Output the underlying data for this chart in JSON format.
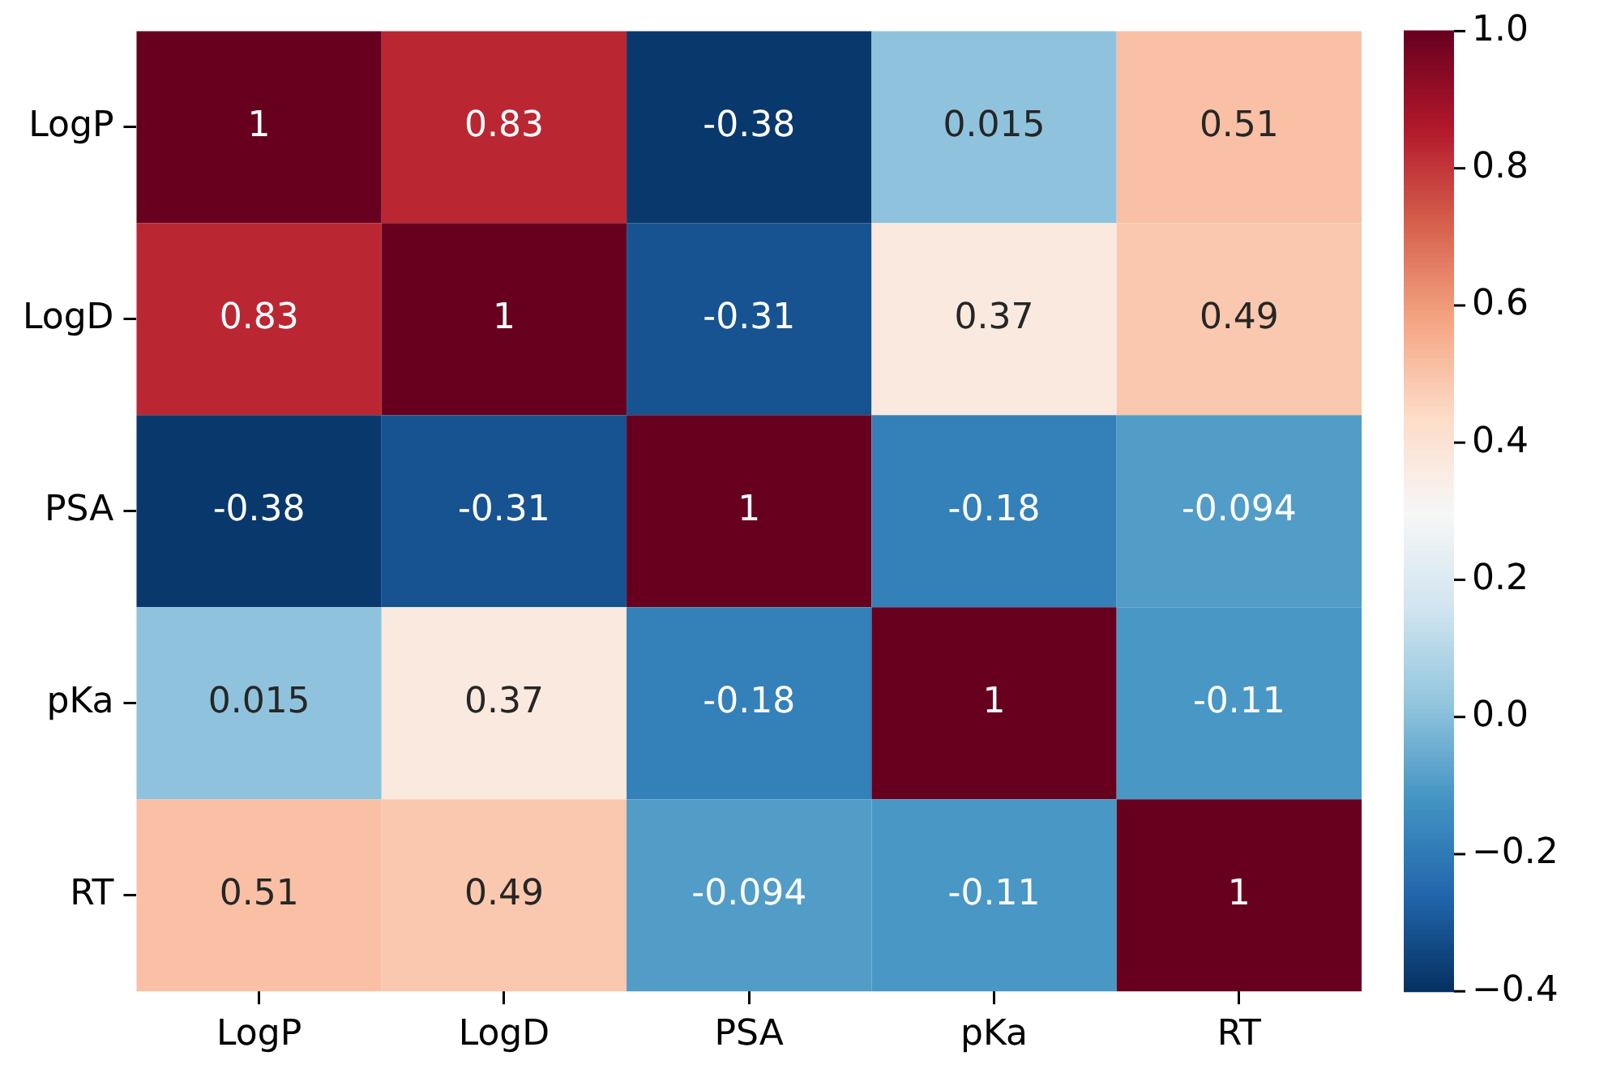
{
  "chart_data": {
    "type": "heatmap",
    "categories": [
      "LogP",
      "LogD",
      "PSA",
      "pKa",
      "RT"
    ],
    "y_categories": [
      "LogP",
      "LogD",
      "PSA",
      "pKa",
      "RT"
    ],
    "cells": [
      [
        1,
        0.83,
        -0.38,
        0.015,
        0.51
      ],
      [
        0.83,
        1,
        -0.31,
        0.37,
        0.49
      ],
      [
        -0.38,
        -0.31,
        1,
        -0.18,
        -0.094
      ],
      [
        0.015,
        0.37,
        -0.18,
        1,
        -0.11
      ],
      [
        0.51,
        0.49,
        -0.094,
        -0.11,
        1
      ]
    ],
    "data_labels": true,
    "clim": [
      -0.4,
      1.0
    ],
    "cticks": [
      {
        "value": -0.4,
        "label": "−0.4"
      },
      {
        "value": -0.2,
        "label": "−0.2"
      },
      {
        "value": 0,
        "label": "0.0"
      },
      {
        "value": 0.2,
        "label": "0.2"
      },
      {
        "value": 0.4,
        "label": "0.4"
      },
      {
        "value": 0.6,
        "label": "0.6"
      },
      {
        "value": 0.8,
        "label": "0.8"
      },
      {
        "value": 1.0,
        "label": "1.0"
      }
    ]
  }
}
